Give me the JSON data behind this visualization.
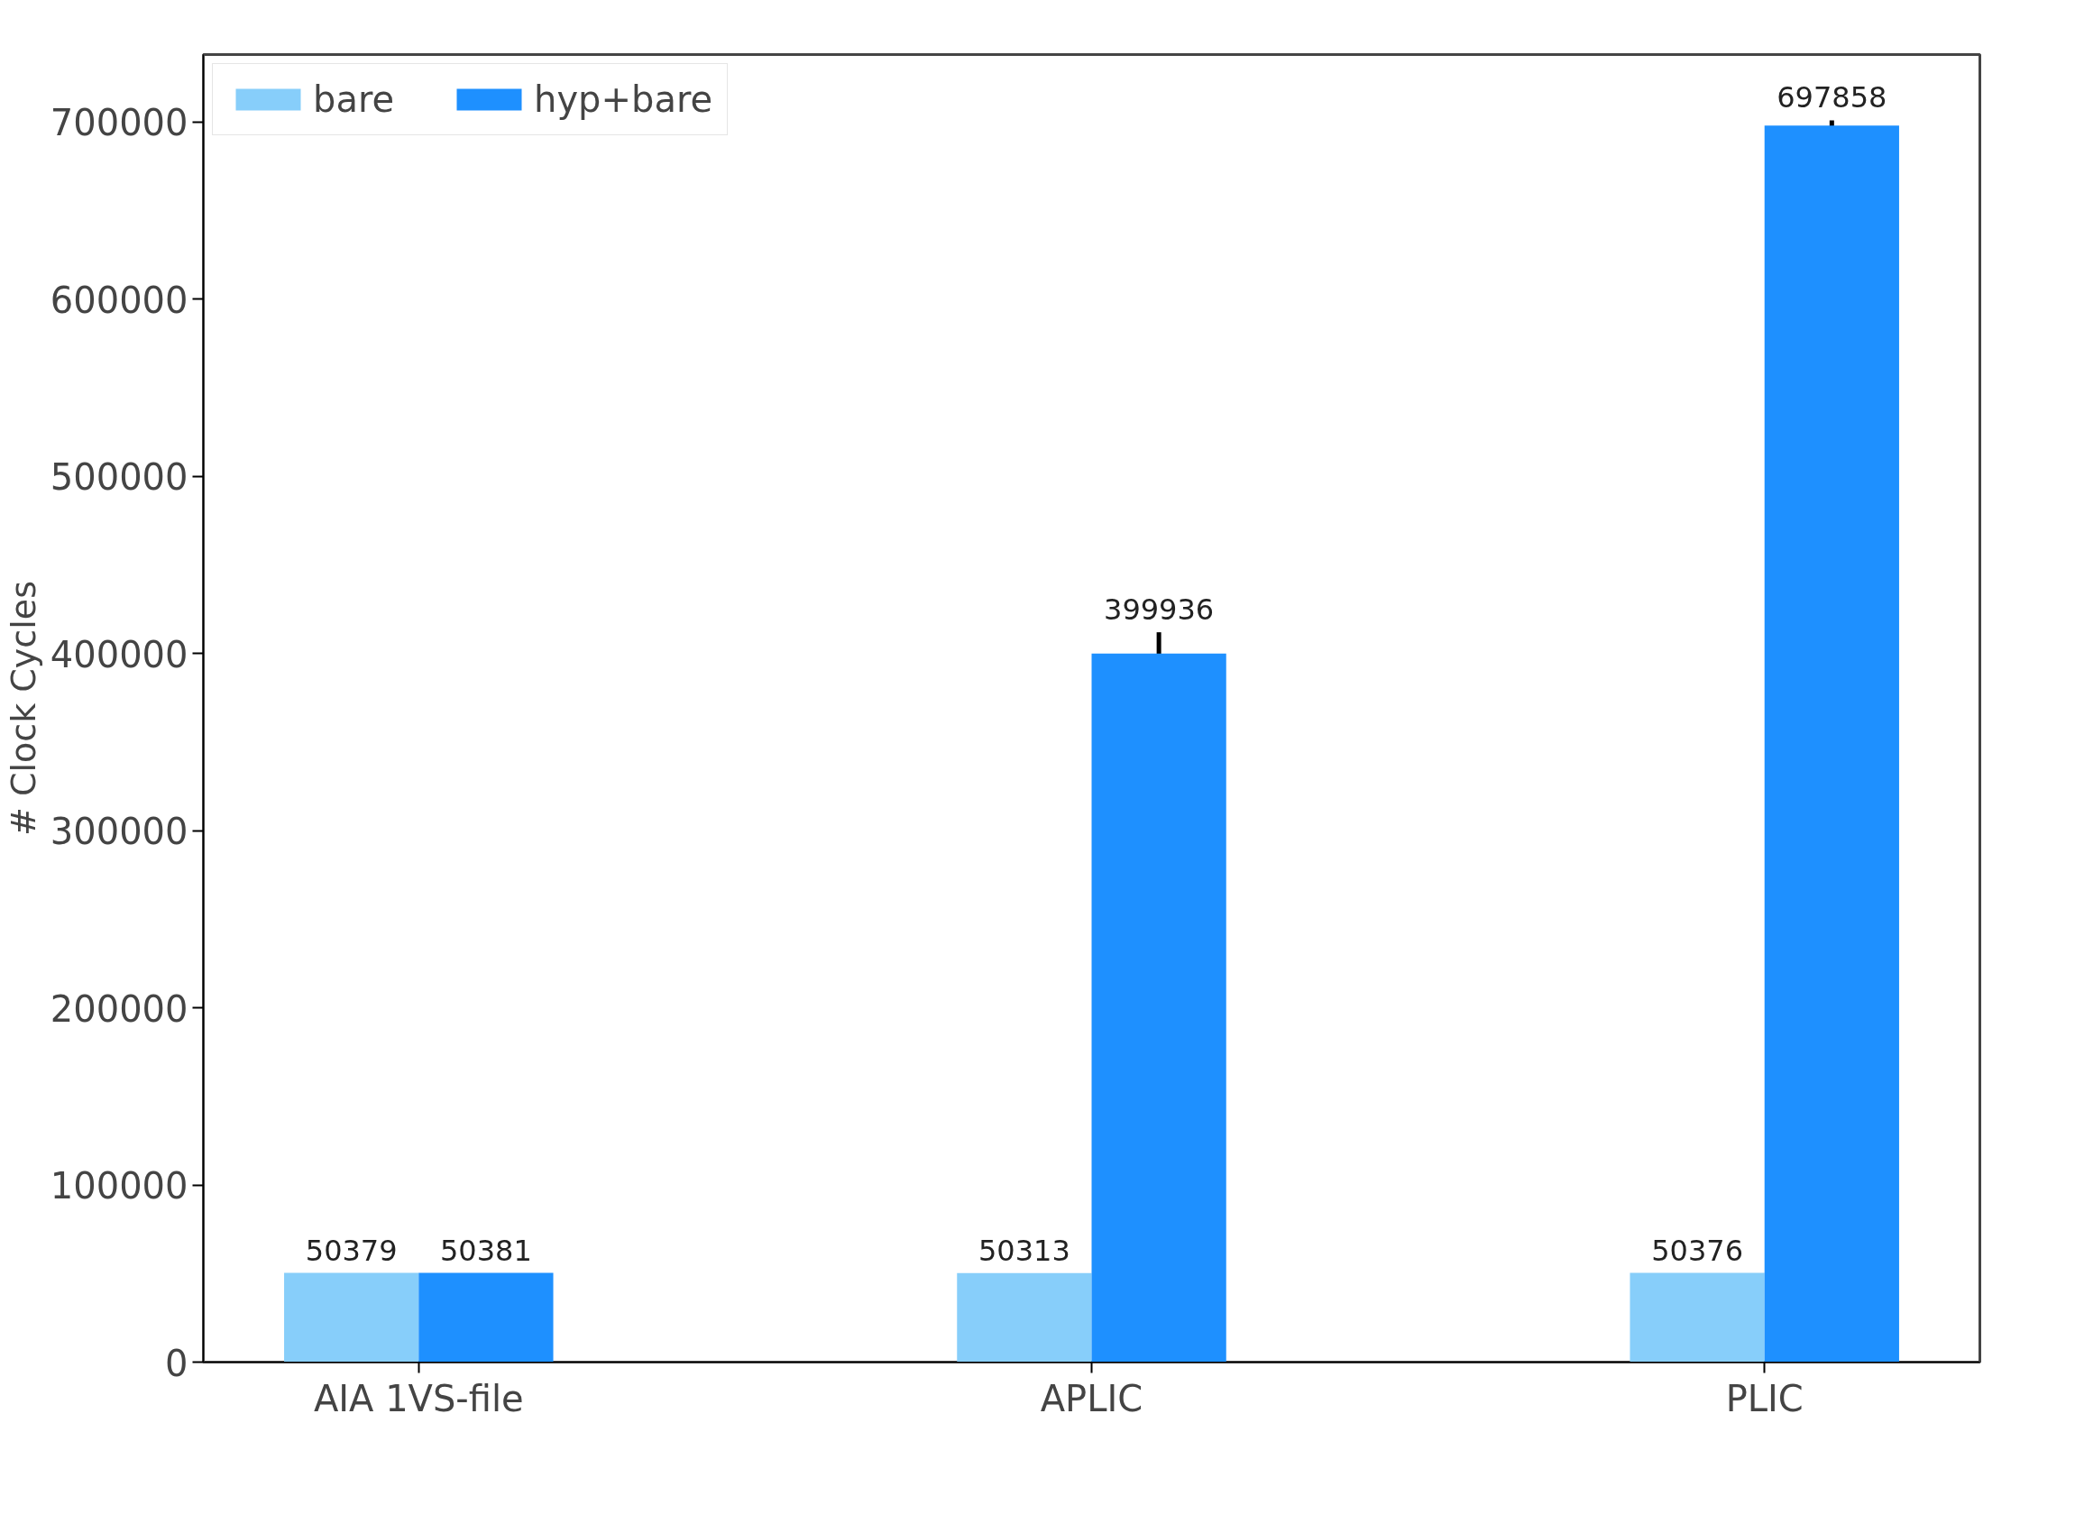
{
  "chart_data": {
    "type": "bar",
    "ylabel": "# Clock Cycles",
    "categories": [
      "AIA 1VS-file",
      "APLIC",
      "PLIC"
    ],
    "series": [
      {
        "name": "bare",
        "color": "#87cefa",
        "values": [
          50379,
          50313,
          50376
        ]
      },
      {
        "name": "hyp+bare",
        "color": "#1e90ff",
        "values": [
          50381,
          399936,
          697858
        ],
        "errors": [
          null,
          12000,
          3000
        ]
      }
    ],
    "ylim": [
      0,
      738000
    ],
    "yticks": [
      0,
      100000,
      200000,
      300000,
      400000,
      500000,
      600000,
      700000
    ],
    "data_labels": true,
    "legend": "top left",
    "grid": false
  }
}
